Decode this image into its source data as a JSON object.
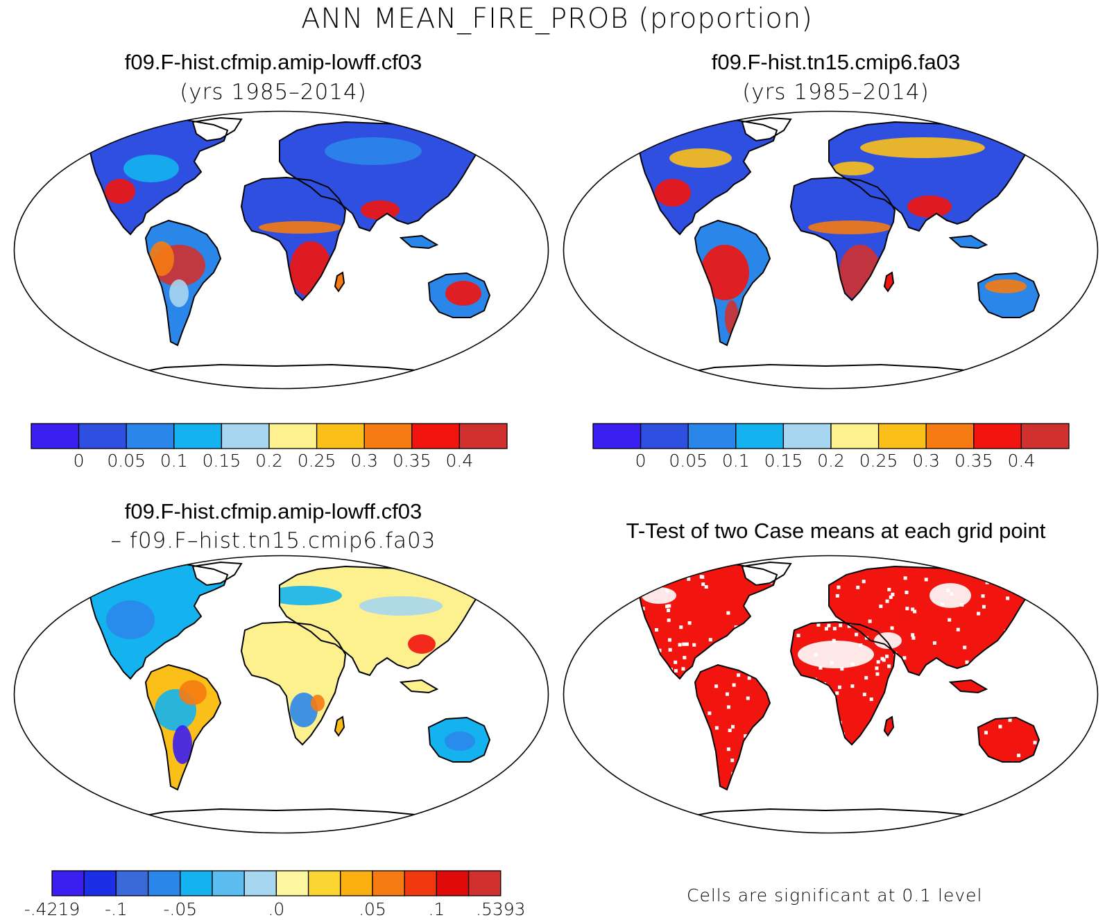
{
  "title": "ANN MEAN_FIRE_PROB (proportion)",
  "panels": [
    {
      "id": "tl",
      "title": "f09.F-hist.cfmip.amip-lowff.cf03",
      "subtitle": "(yrs 1985–2014)"
    },
    {
      "id": "tr",
      "title": "f09.F-hist.tn15.cmip6.fa03",
      "subtitle": "(yrs 1985–2014)"
    },
    {
      "id": "bl",
      "title": "f09.F-hist.cfmip.amip-lowff.cf03",
      "subtitle": "– f09.F–hist.tn15.cmip6.fa03"
    },
    {
      "id": "br",
      "title": "T-Test of two Case means at each grid point",
      "subtitle": ""
    }
  ],
  "colorbar_top": {
    "colors": [
      "#3b1ef0",
      "#2e4fe0",
      "#2b86ea",
      "#14b2ee",
      "#a7d6f0",
      "#fdf08f",
      "#fbbf1a",
      "#f57b12",
      "#f2140e",
      "#d1312e"
    ],
    "labels": [
      "0",
      "0.05",
      "0.1",
      "0.15",
      "0.2",
      "0.25",
      "0.3",
      "0.35",
      "0.4"
    ]
  },
  "colorbar_diff": {
    "colors": [
      "#3b1ef0",
      "#1b2fe6",
      "#3a6ad8",
      "#2b86ea",
      "#14b2ee",
      "#5cbdf0",
      "#a7d6f0",
      "#fdf6a0",
      "#fbd633",
      "#fbb012",
      "#f57b12",
      "#f2380e",
      "#e00a0a",
      "#d1312e"
    ],
    "labels": [
      "-.4219",
      "-.1",
      "-.05",
      ".0",
      ".05",
      ".1",
      ".5393"
    ]
  },
  "note": "Cells are significant at 0.1 level"
}
